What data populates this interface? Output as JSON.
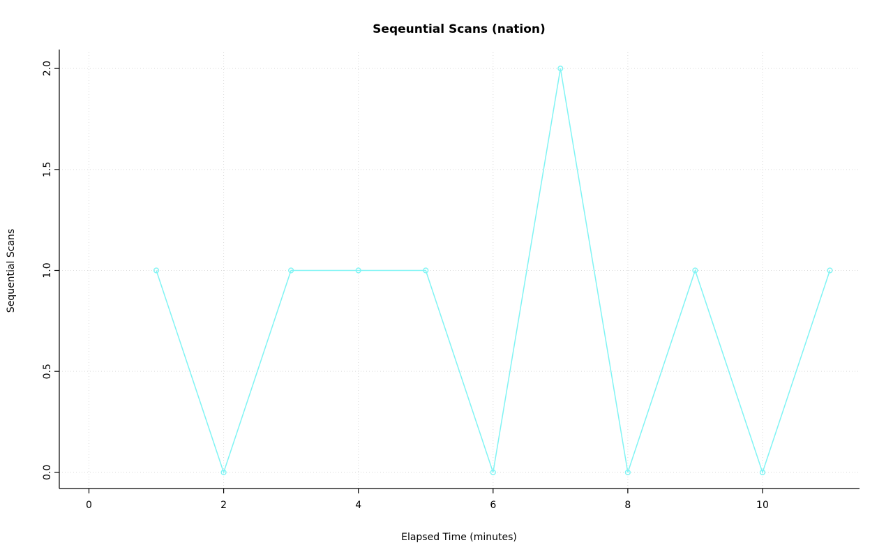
{
  "chart_data": {
    "type": "line",
    "title": "Seqeuntial Scans (nation)",
    "xlabel": "Elapsed Time (minutes)",
    "ylabel": "Sequential Scans",
    "x": [
      1,
      2,
      3,
      4,
      5,
      6,
      7,
      8,
      9,
      10,
      11
    ],
    "y": [
      1,
      0,
      1,
      1,
      1,
      0,
      2,
      0,
      1,
      0,
      1
    ],
    "x_ticks": [
      0,
      2,
      4,
      6,
      8,
      10
    ],
    "x_tick_labels": [
      "0",
      "2",
      "4",
      "6",
      "8",
      "10"
    ],
    "y_ticks": [
      0,
      0.5,
      1,
      1.5,
      2
    ],
    "y_tick_labels": [
      "0.0",
      "0.5",
      "1.0",
      "1.5",
      "2.0"
    ],
    "xlim": [
      -0.44,
      11.44
    ],
    "ylim": [
      -0.08,
      2.08
    ],
    "grid": true,
    "legend_position": "none",
    "marker": "open-circle",
    "colors": {
      "series": "#80F4F4",
      "grid": "#D9D9D9",
      "axis": "#000000",
      "background": "#FFFFFF"
    }
  }
}
